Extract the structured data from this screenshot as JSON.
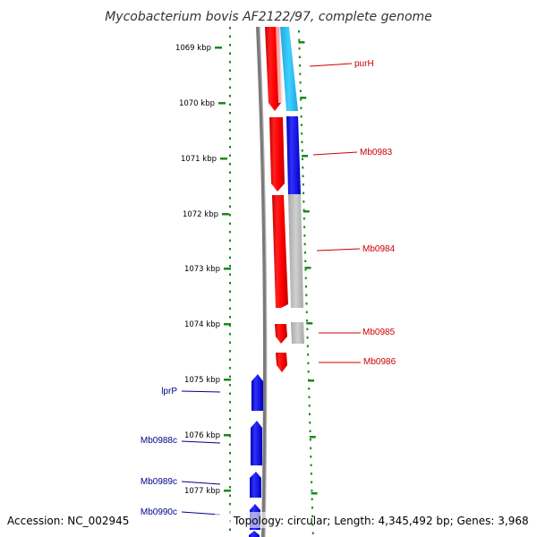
{
  "title": "Mycobacterium bovis AF2122/97, complete genome",
  "footer": {
    "accession": "Accession: NC_002945",
    "summary": "Topology: circular; Length: 4,345,492 bp; Genes: 3,968"
  },
  "ticks": [
    "1069 kbp",
    "1070 kbp",
    "1071 kbp",
    "1072 kbp",
    "1073 kbp",
    "1074 kbp",
    "1075 kbp",
    "1076 kbp",
    "1077 kbp"
  ],
  "genes": [
    {
      "label": "purH",
      "strand": "plus"
    },
    {
      "label": "Mb0983",
      "strand": "plus"
    },
    {
      "label": "Mb0984",
      "strand": "plus"
    },
    {
      "label": "Mb0985",
      "strand": "plus"
    },
    {
      "label": "Mb0986",
      "strand": "plus"
    },
    {
      "label": "lprP",
      "strand": "minus"
    },
    {
      "label": "Mb0988c",
      "strand": "minus"
    },
    {
      "label": "Mb0989c",
      "strand": "minus"
    },
    {
      "label": "Mb0990c",
      "strand": "minus"
    }
  ],
  "colors": {
    "plus_strand": "#ff0000",
    "minus_strand": "#0000ff",
    "plus_label": "#cc0000",
    "minus_label": "#00008b",
    "gc_skew_light": "#29c1f0",
    "gc_skew_dark": "#1a1aff",
    "gc_content": "#bbbbbb",
    "backbone": "#808080",
    "tick_green": "#1a8a1a"
  }
}
